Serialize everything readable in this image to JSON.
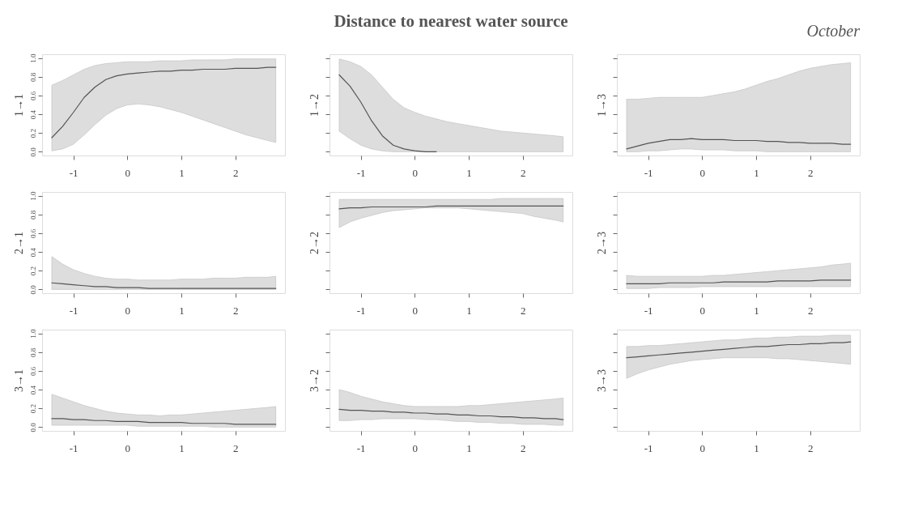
{
  "chart_data": [
    {
      "type": "line",
      "ylabel": "1→1",
      "xlim": [
        -1.58,
        2.92
      ],
      "ylim": [
        -0.04,
        1.04
      ],
      "xticks": [
        -1,
        0,
        1,
        2
      ],
      "yticks": [
        {
          "value": 0,
          "label": "0.0"
        },
        {
          "value": 0.2,
          "label": "0.2"
        },
        {
          "value": 0.4,
          "label": "0.4"
        },
        {
          "value": 0.6,
          "label": "0.6"
        },
        {
          "value": 0.8,
          "label": "0.8"
        },
        {
          "value": 1,
          "label": "1.0"
        }
      ],
      "grid": false,
      "x": [
        -1.4,
        -1.2,
        -1.0,
        -0.8,
        -0.6,
        -0.4,
        -0.2,
        0.0,
        0.2,
        0.4,
        0.6,
        0.8,
        1.0,
        1.2,
        1.4,
        1.6,
        1.8,
        2.0,
        2.2,
        2.4,
        2.6,
        2.75
      ],
      "series": [
        {
          "color": "#555555",
          "values": [
            0.15,
            0.27,
            0.42,
            0.58,
            0.69,
            0.77,
            0.81,
            0.83,
            0.84,
            0.85,
            0.86,
            0.86,
            0.87,
            0.87,
            0.88,
            0.88,
            0.88,
            0.89,
            0.89,
            0.89,
            0.9,
            0.9
          ],
          "lower": [
            0.01,
            0.03,
            0.08,
            0.18,
            0.29,
            0.39,
            0.46,
            0.5,
            0.51,
            0.5,
            0.48,
            0.45,
            0.42,
            0.38,
            0.34,
            0.3,
            0.26,
            0.22,
            0.18,
            0.15,
            0.12,
            0.1
          ],
          "upper": [
            0.71,
            0.76,
            0.82,
            0.88,
            0.92,
            0.94,
            0.95,
            0.96,
            0.96,
            0.96,
            0.97,
            0.97,
            0.97,
            0.98,
            0.98,
            0.98,
            0.98,
            0.99,
            0.99,
            0.99,
            0.99,
            0.99
          ]
        }
      ]
    },
    {
      "type": "line",
      "title": "Distance to nearest water source",
      "ylabel": "1→2",
      "xlim": [
        -1.58,
        2.92
      ],
      "ylim": [
        -0.04,
        1.04
      ],
      "xticks": [
        -1,
        0,
        1,
        2
      ],
      "yticks": [
        {
          "value": 0,
          "label": null
        },
        {
          "value": 0.2,
          "label": null
        },
        {
          "value": 0.4,
          "label": null
        },
        {
          "value": 0.6,
          "label": null
        },
        {
          "value": 0.8,
          "label": null
        },
        {
          "value": 1,
          "label": null
        }
      ],
      "tick_labels": "x",
      "grid": false,
      "x": [
        -1.4,
        -1.2,
        -1.0,
        -0.8,
        -0.6,
        -0.4,
        -0.2,
        0.0,
        0.2,
        0.4,
        0.6,
        0.8,
        1.0,
        1.2,
        1.4,
        1.6,
        1.8,
        2.0,
        2.2,
        2.4,
        2.6,
        2.75
      ],
      "series": [
        {
          "color": "#555555",
          "values": [
            0.82,
            0.7,
            0.53,
            0.33,
            0.17,
            0.07,
            0.03,
            0.01,
            0.0,
            0.0,
            null,
            null,
            null,
            null,
            null,
            null,
            null,
            null,
            null,
            null,
            null,
            null
          ],
          "lower": [
            0.22,
            0.14,
            0.07,
            0.03,
            0.01,
            0,
            0,
            0,
            0,
            0,
            0,
            0,
            0,
            0,
            0,
            0,
            0,
            0,
            0,
            0,
            0,
            0
          ],
          "upper": [
            0.99,
            0.96,
            0.91,
            0.82,
            0.69,
            0.56,
            0.47,
            0.42,
            0.38,
            0.35,
            0.32,
            0.3,
            0.28,
            0.26,
            0.24,
            0.22,
            0.21,
            0.2,
            0.19,
            0.18,
            0.17,
            0.16
          ]
        }
      ]
    },
    {
      "type": "line",
      "ylabel": "1→3",
      "annotations": [
        "October"
      ],
      "xlim": [
        -1.58,
        2.92
      ],
      "ylim": [
        -0.04,
        1.04
      ],
      "xticks": [
        -1,
        0,
        1,
        2
      ],
      "yticks": [
        {
          "value": 0,
          "label": null
        },
        {
          "value": 0.2,
          "label": null
        },
        {
          "value": 0.4,
          "label": null
        },
        {
          "value": 0.6,
          "label": null
        },
        {
          "value": 0.8,
          "label": null
        },
        {
          "value": 1,
          "label": null
        }
      ],
      "tick_labels": "x",
      "grid": false,
      "x": [
        -1.4,
        -1.2,
        -1.0,
        -0.8,
        -0.6,
        -0.4,
        -0.2,
        0.0,
        0.2,
        0.4,
        0.6,
        0.8,
        1.0,
        1.2,
        1.4,
        1.6,
        1.8,
        2.0,
        2.2,
        2.4,
        2.6,
        2.75
      ],
      "series": [
        {
          "color": "#555555",
          "values": [
            0.03,
            0.06,
            0.09,
            0.11,
            0.13,
            0.13,
            0.14,
            0.13,
            0.13,
            0.13,
            0.12,
            0.12,
            0.12,
            0.11,
            0.11,
            0.1,
            0.1,
            0.09,
            0.09,
            0.09,
            0.08,
            0.08
          ],
          "lower": [
            0,
            0,
            0.01,
            0.01,
            0.02,
            0.03,
            0.03,
            0.02,
            0.02,
            0.02,
            0.01,
            0.01,
            0.01,
            0,
            0,
            0,
            0,
            0,
            0,
            0,
            0,
            0
          ],
          "upper": [
            0.56,
            0.56,
            0.57,
            0.58,
            0.58,
            0.58,
            0.58,
            0.58,
            0.6,
            0.62,
            0.64,
            0.67,
            0.71,
            0.75,
            0.78,
            0.82,
            0.86,
            0.89,
            0.91,
            0.93,
            0.94,
            0.95
          ]
        }
      ]
    },
    {
      "type": "line",
      "ylabel": "2→1",
      "xlim": [
        -1.58,
        2.92
      ],
      "ylim": [
        -0.04,
        1.04
      ],
      "xticks": [
        -1,
        0,
        1,
        2
      ],
      "yticks": [
        {
          "value": 0,
          "label": "0.0"
        },
        {
          "value": 0.2,
          "label": "0.2"
        },
        {
          "value": 0.4,
          "label": "0.4"
        },
        {
          "value": 0.6,
          "label": "0.6"
        },
        {
          "value": 0.8,
          "label": "0.8"
        },
        {
          "value": 1,
          "label": "1.0"
        }
      ],
      "grid": false,
      "x": [
        -1.4,
        -1.2,
        -1.0,
        -0.8,
        -0.6,
        -0.4,
        -0.2,
        0.0,
        0.2,
        0.4,
        0.6,
        0.8,
        1.0,
        1.2,
        1.4,
        1.6,
        1.8,
        2.0,
        2.2,
        2.4,
        2.6,
        2.75
      ],
      "series": [
        {
          "color": "#555555",
          "values": [
            0.07,
            0.06,
            0.05,
            0.04,
            0.03,
            0.03,
            0.02,
            0.02,
            0.02,
            0.01,
            0.01,
            0.01,
            0.01,
            0.01,
            0.01,
            0.01,
            0.01,
            0.01,
            0.01,
            0.01,
            0.01,
            0.01
          ],
          "lower": [
            0,
            0,
            0,
            0,
            0,
            0,
            0,
            0,
            0,
            0,
            0,
            0,
            0,
            0,
            0,
            0,
            0,
            0,
            0,
            0,
            0,
            0
          ],
          "upper": [
            0.35,
            0.27,
            0.21,
            0.17,
            0.14,
            0.12,
            0.11,
            0.11,
            0.1,
            0.1,
            0.1,
            0.1,
            0.11,
            0.11,
            0.11,
            0.12,
            0.12,
            0.12,
            0.13,
            0.13,
            0.13,
            0.14
          ]
        }
      ]
    },
    {
      "type": "line",
      "ylabel": "2→2",
      "xlim": [
        -1.58,
        2.92
      ],
      "ylim": [
        -0.04,
        1.04
      ],
      "xticks": [
        -1,
        0,
        1,
        2
      ],
      "yticks": [
        {
          "value": 0,
          "label": null
        },
        {
          "value": 0.2,
          "label": null
        },
        {
          "value": 0.4,
          "label": null
        },
        {
          "value": 0.6,
          "label": null
        },
        {
          "value": 0.8,
          "label": null
        },
        {
          "value": 1,
          "label": null
        }
      ],
      "tick_labels": "x",
      "grid": false,
      "x": [
        -1.4,
        -1.2,
        -1.0,
        -0.8,
        -0.6,
        -0.4,
        -0.2,
        0.0,
        0.2,
        0.4,
        0.6,
        0.8,
        1.0,
        1.2,
        1.4,
        1.6,
        1.8,
        2.0,
        2.2,
        2.4,
        2.6,
        2.75
      ],
      "series": [
        {
          "color": "#555555",
          "values": [
            0.86,
            0.87,
            0.87,
            0.88,
            0.88,
            0.88,
            0.88,
            0.88,
            0.88,
            0.89,
            0.89,
            0.89,
            0.89,
            0.89,
            0.89,
            0.89,
            0.89,
            0.89,
            0.89,
            0.89,
            0.89,
            0.89
          ],
          "lower": [
            0.66,
            0.72,
            0.76,
            0.79,
            0.82,
            0.84,
            0.85,
            0.86,
            0.87,
            0.87,
            0.87,
            0.87,
            0.86,
            0.85,
            0.84,
            0.83,
            0.82,
            0.81,
            0.78,
            0.76,
            0.74,
            0.72
          ],
          "upper": [
            0.96,
            0.96,
            0.96,
            0.96,
            0.96,
            0.96,
            0.96,
            0.96,
            0.96,
            0.96,
            0.96,
            0.96,
            0.96,
            0.96,
            0.96,
            0.97,
            0.97,
            0.97,
            0.97,
            0.97,
            0.97,
            0.97
          ]
        }
      ]
    },
    {
      "type": "line",
      "ylabel": "2→3",
      "xlim": [
        -1.58,
        2.92
      ],
      "ylim": [
        -0.04,
        1.04
      ],
      "xticks": [
        -1,
        0,
        1,
        2
      ],
      "yticks": [
        {
          "value": 0,
          "label": null
        },
        {
          "value": 0.2,
          "label": null
        },
        {
          "value": 0.4,
          "label": null
        },
        {
          "value": 0.6,
          "label": null
        },
        {
          "value": 0.8,
          "label": null
        },
        {
          "value": 1,
          "label": null
        }
      ],
      "tick_labels": "x",
      "grid": false,
      "x": [
        -1.4,
        -1.2,
        -1.0,
        -0.8,
        -0.6,
        -0.4,
        -0.2,
        0.0,
        0.2,
        0.4,
        0.6,
        0.8,
        1.0,
        1.2,
        1.4,
        1.6,
        1.8,
        2.0,
        2.2,
        2.4,
        2.6,
        2.75
      ],
      "series": [
        {
          "color": "#555555",
          "values": [
            0.06,
            0.06,
            0.06,
            0.06,
            0.07,
            0.07,
            0.07,
            0.07,
            0.07,
            0.08,
            0.08,
            0.08,
            0.08,
            0.08,
            0.09,
            0.09,
            0.09,
            0.09,
            0.1,
            0.1,
            0.1,
            0.1
          ],
          "lower": [
            0.01,
            0.01,
            0.01,
            0.02,
            0.02,
            0.02,
            0.02,
            0.03,
            0.03,
            0.03,
            0.03,
            0.03,
            0.03,
            0.03,
            0.03,
            0.03,
            0.03,
            0.03,
            0.03,
            0.03,
            0.03,
            0.03
          ],
          "upper": [
            0.15,
            0.14,
            0.14,
            0.14,
            0.14,
            0.14,
            0.14,
            0.14,
            0.15,
            0.15,
            0.16,
            0.17,
            0.18,
            0.19,
            0.2,
            0.21,
            0.22,
            0.23,
            0.24,
            0.26,
            0.27,
            0.28
          ]
        }
      ]
    },
    {
      "type": "line",
      "ylabel": "3→1",
      "xlim": [
        -1.58,
        2.92
      ],
      "ylim": [
        -0.04,
        1.04
      ],
      "xticks": [
        -1,
        0,
        1,
        2
      ],
      "yticks": [
        {
          "value": 0,
          "label": "0.0"
        },
        {
          "value": 0.2,
          "label": "0.2"
        },
        {
          "value": 0.4,
          "label": "0.4"
        },
        {
          "value": 0.6,
          "label": "0.6"
        },
        {
          "value": 0.8,
          "label": "0.8"
        },
        {
          "value": 1,
          "label": "1.0"
        }
      ],
      "grid": false,
      "x": [
        -1.4,
        -1.2,
        -1.0,
        -0.8,
        -0.6,
        -0.4,
        -0.2,
        0.0,
        0.2,
        0.4,
        0.6,
        0.8,
        1.0,
        1.2,
        1.4,
        1.6,
        1.8,
        2.0,
        2.2,
        2.4,
        2.6,
        2.75
      ],
      "series": [
        {
          "color": "#555555",
          "values": [
            0.09,
            0.09,
            0.08,
            0.08,
            0.07,
            0.07,
            0.06,
            0.06,
            0.06,
            0.05,
            0.05,
            0.05,
            0.05,
            0.04,
            0.04,
            0.04,
            0.04,
            0.03,
            0.03,
            0.03,
            0.03,
            0.03
          ],
          "lower": [
            0.02,
            0.02,
            0.02,
            0.02,
            0.02,
            0.02,
            0.02,
            0.02,
            0.01,
            0.01,
            0.01,
            0.01,
            0.01,
            0.01,
            0.01,
            0,
            0,
            0,
            0,
            0,
            0,
            0
          ],
          "upper": [
            0.35,
            0.31,
            0.27,
            0.23,
            0.2,
            0.17,
            0.15,
            0.14,
            0.13,
            0.13,
            0.12,
            0.13,
            0.13,
            0.14,
            0.15,
            0.16,
            0.17,
            0.18,
            0.19,
            0.2,
            0.21,
            0.22
          ]
        }
      ]
    },
    {
      "type": "line",
      "ylabel": "3→2",
      "xlim": [
        -1.58,
        2.92
      ],
      "ylim": [
        -0.04,
        1.04
      ],
      "xticks": [
        -1,
        0,
        1,
        2
      ],
      "yticks": [
        {
          "value": 0,
          "label": null
        },
        {
          "value": 0.2,
          "label": null
        },
        {
          "value": 0.4,
          "label": null
        },
        {
          "value": 0.6,
          "label": null
        },
        {
          "value": 0.8,
          "label": null
        },
        {
          "value": 1,
          "label": null
        }
      ],
      "tick_labels": "x",
      "grid": false,
      "x": [
        -1.4,
        -1.2,
        -1.0,
        -0.8,
        -0.6,
        -0.4,
        -0.2,
        0.0,
        0.2,
        0.4,
        0.6,
        0.8,
        1.0,
        1.2,
        1.4,
        1.6,
        1.8,
        2.0,
        2.2,
        2.4,
        2.6,
        2.75
      ],
      "series": [
        {
          "color": "#555555",
          "values": [
            0.19,
            0.18,
            0.18,
            0.17,
            0.17,
            0.16,
            0.16,
            0.15,
            0.15,
            0.14,
            0.14,
            0.13,
            0.13,
            0.12,
            0.12,
            0.11,
            0.11,
            0.1,
            0.1,
            0.09,
            0.09,
            0.08
          ],
          "lower": [
            0.07,
            0.07,
            0.08,
            0.08,
            0.09,
            0.09,
            0.09,
            0.09,
            0.08,
            0.08,
            0.07,
            0.06,
            0.06,
            0.05,
            0.05,
            0.04,
            0.04,
            0.03,
            0.03,
            0.03,
            0.02,
            0.02
          ],
          "upper": [
            0.4,
            0.37,
            0.33,
            0.3,
            0.27,
            0.25,
            0.23,
            0.22,
            0.22,
            0.22,
            0.22,
            0.22,
            0.23,
            0.23,
            0.24,
            0.25,
            0.26,
            0.27,
            0.28,
            0.29,
            0.3,
            0.31
          ]
        }
      ]
    },
    {
      "type": "line",
      "ylabel": "3→3",
      "xlim": [
        -1.58,
        2.92
      ],
      "ylim": [
        -0.04,
        1.04
      ],
      "xticks": [
        -1,
        0,
        1,
        2
      ],
      "yticks": [
        {
          "value": 0,
          "label": null
        },
        {
          "value": 0.2,
          "label": null
        },
        {
          "value": 0.4,
          "label": null
        },
        {
          "value": 0.6,
          "label": null
        },
        {
          "value": 0.8,
          "label": null
        },
        {
          "value": 1,
          "label": null
        }
      ],
      "tick_labels": "x",
      "grid": false,
      "x": [
        -1.4,
        -1.2,
        -1.0,
        -0.8,
        -0.6,
        -0.4,
        -0.2,
        0.0,
        0.2,
        0.4,
        0.6,
        0.8,
        1.0,
        1.2,
        1.4,
        1.6,
        1.8,
        2.0,
        2.2,
        2.4,
        2.6,
        2.75
      ],
      "series": [
        {
          "color": "#555555",
          "values": [
            0.74,
            0.75,
            0.76,
            0.77,
            0.78,
            0.79,
            0.8,
            0.81,
            0.82,
            0.83,
            0.84,
            0.85,
            0.86,
            0.86,
            0.87,
            0.88,
            0.88,
            0.89,
            0.89,
            0.9,
            0.9,
            0.91
          ],
          "lower": [
            0.52,
            0.57,
            0.61,
            0.64,
            0.67,
            0.69,
            0.71,
            0.72,
            0.73,
            0.74,
            0.74,
            0.74,
            0.74,
            0.74,
            0.73,
            0.73,
            0.72,
            0.71,
            0.7,
            0.69,
            0.68,
            0.67
          ],
          "upper": [
            0.86,
            0.86,
            0.87,
            0.87,
            0.88,
            0.89,
            0.9,
            0.91,
            0.92,
            0.93,
            0.93,
            0.94,
            0.95,
            0.95,
            0.96,
            0.96,
            0.97,
            0.97,
            0.97,
            0.98,
            0.98,
            0.98
          ]
        }
      ]
    }
  ]
}
